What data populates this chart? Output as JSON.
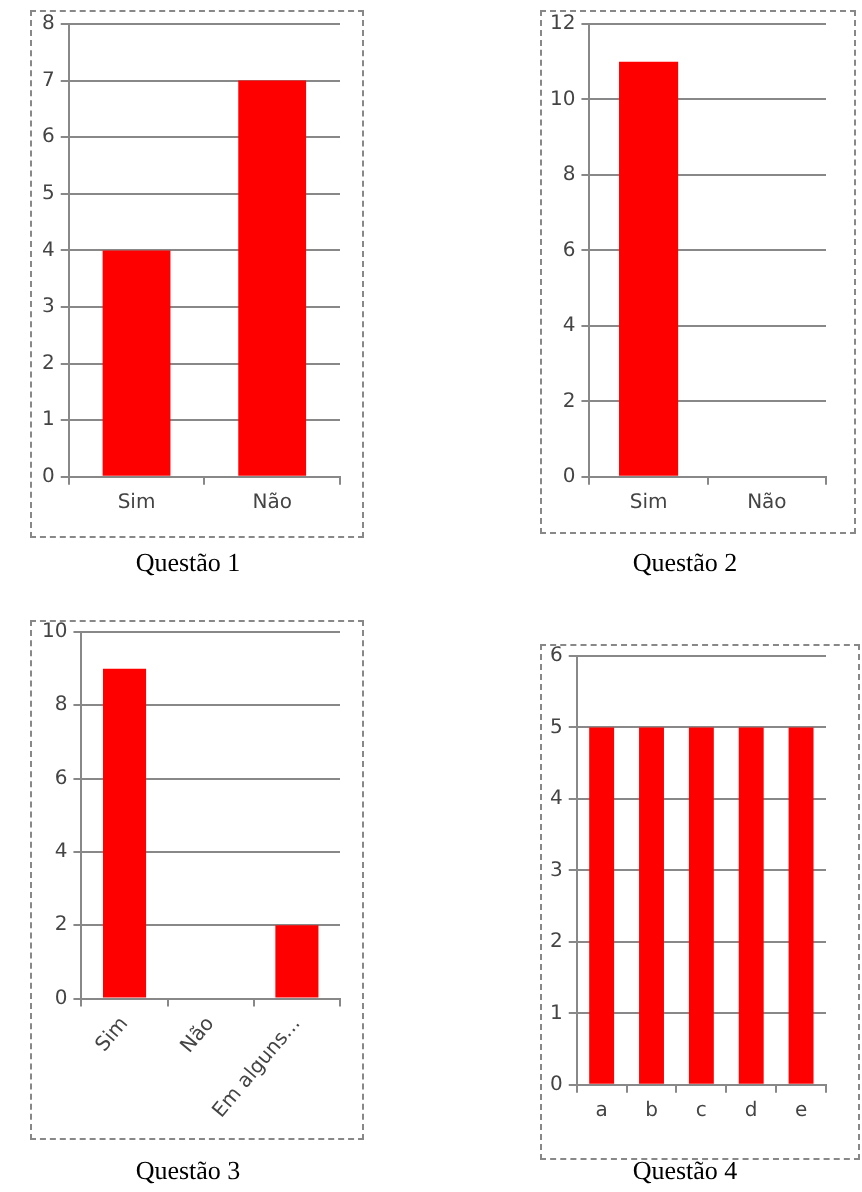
{
  "chart_data": [
    {
      "type": "bar",
      "title": "Questão 1",
      "categories": [
        "Sim",
        "Não"
      ],
      "values": [
        4,
        7
      ],
      "color": "#ff0000",
      "ylim": [
        0,
        8
      ],
      "yticks": [
        0,
        1,
        2,
        3,
        4,
        5,
        6,
        7,
        8
      ],
      "grid": "y"
    },
    {
      "type": "bar",
      "title": "Questão 2",
      "categories": [
        "Sim",
        "Não"
      ],
      "values": [
        11,
        0
      ],
      "color": "#ff0000",
      "ylim": [
        0,
        12
      ],
      "yticks": [
        0,
        2,
        4,
        6,
        8,
        10,
        12
      ],
      "grid": "y"
    },
    {
      "type": "bar",
      "title": "Questão 3",
      "categories": [
        "Sim",
        "Não",
        "Em alguns..."
      ],
      "values": [
        9,
        0,
        2
      ],
      "color": "#ff0000",
      "ylim": [
        0,
        10
      ],
      "yticks": [
        0,
        2,
        4,
        6,
        8,
        10
      ],
      "grid": "y"
    },
    {
      "type": "bar",
      "title": "Questão 4",
      "categories": [
        "a",
        "b",
        "c",
        "d",
        "e"
      ],
      "values": [
        5,
        5,
        5,
        5,
        5
      ],
      "color": "#ff0000",
      "ylim": [
        0,
        6
      ],
      "yticks": [
        0,
        1,
        2,
        3,
        4,
        5,
        6
      ],
      "grid": "y"
    }
  ]
}
